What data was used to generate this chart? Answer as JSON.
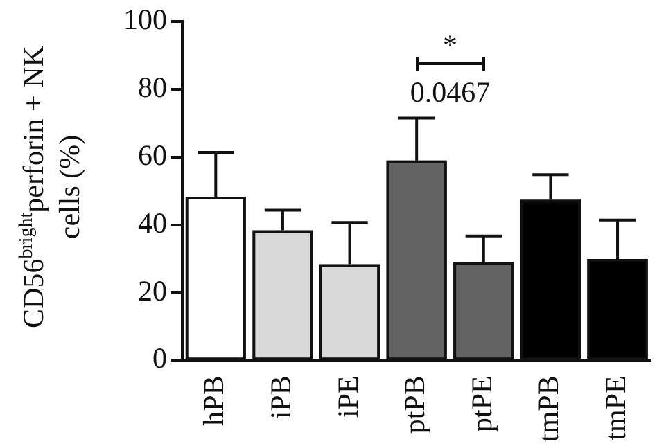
{
  "chart_data": {
    "type": "bar",
    "ylabel": "CD56$^{bright}$perforin + NK cells (%)",
    "categories": [
      "hPB",
      "iPB",
      "iPE",
      "ptPB",
      "ptPE",
      "tmPB",
      "tmPE"
    ],
    "values": [
      48.3,
      38.4,
      28.4,
      59,
      29,
      47.4,
      29.9
    ],
    "colors": [
      "#ffffff",
      "#d9d9d9",
      "#d9d9d9",
      "#636363",
      "#636363",
      "#000000",
      "#000000"
    ],
    "errors": [
      [
        48.3,
        61.4
      ],
      [
        38.4,
        44.3
      ],
      [
        28.4,
        40.7
      ],
      [
        59,
        71.5
      ],
      [
        29,
        36.7
      ],
      [
        47.4,
        54.8
      ],
      [
        29.9,
        41.4
      ]
    ],
    "ylim": [
      0,
      100
    ],
    "yticks": [
      0,
      20,
      40,
      60,
      80,
      100
    ],
    "annotations": [
      "*",
      "0.0467"
    ],
    "grid": false,
    "legend": false
  }
}
